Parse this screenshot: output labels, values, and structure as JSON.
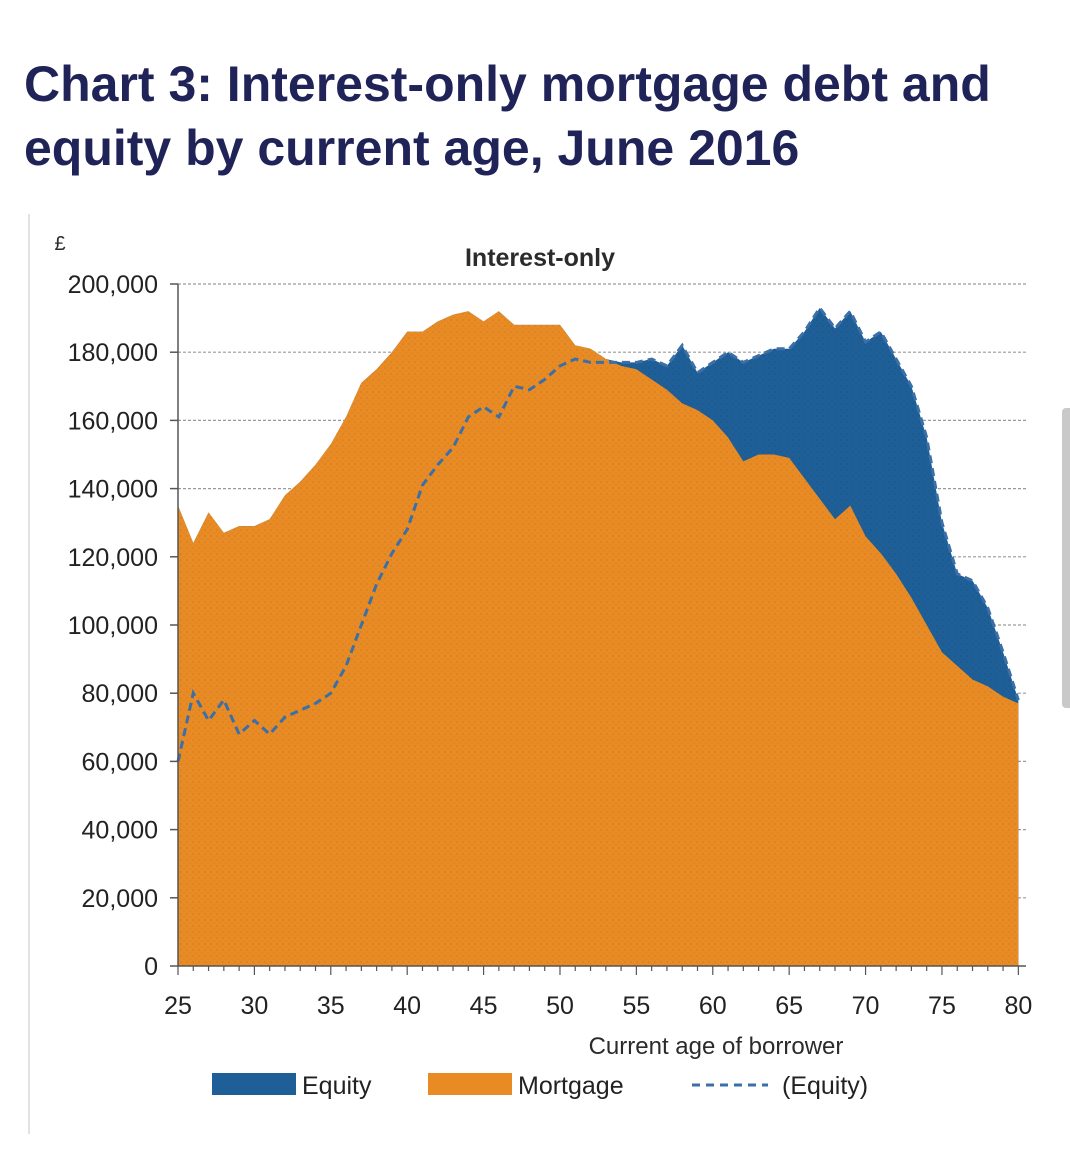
{
  "headline": "Chart 3: Interest-only mortgage debt and equity by current age, June 2016",
  "chart_data": {
    "type": "area",
    "title": "Interest-only",
    "unit_label": "£",
    "xlabel": "Current age of borrower",
    "ylabel": "",
    "xlim": [
      25,
      80.5
    ],
    "ylim": [
      0,
      200000
    ],
    "x_ticks": [
      25,
      30,
      35,
      40,
      45,
      50,
      55,
      60,
      65,
      70,
      75,
      80
    ],
    "y_ticks": [
      0,
      20000,
      40000,
      60000,
      80000,
      100000,
      120000,
      140000,
      160000,
      180000,
      200000
    ],
    "y_tick_labels": [
      "0",
      "20,000",
      "40,000",
      "60,000",
      "80,000",
      "100,000",
      "120,000",
      "140,000",
      "160,000",
      "180,000",
      "200,000"
    ],
    "grid": true,
    "legend_position": "bottom",
    "x": [
      25,
      26,
      27,
      28,
      29,
      30,
      31,
      32,
      33,
      34,
      35,
      36,
      37,
      38,
      39,
      40,
      41,
      42,
      43,
      44,
      45,
      46,
      47,
      48,
      49,
      50,
      51,
      52,
      53,
      54,
      55,
      56,
      57,
      58,
      59,
      60,
      61,
      62,
      63,
      64,
      65,
      66,
      67,
      68,
      69,
      70,
      71,
      72,
      73,
      74,
      75,
      76,
      77,
      78,
      79,
      80
    ],
    "series": [
      {
        "name": "Equity",
        "color": "#1f5f98",
        "style": "stacked-area",
        "values": [
          60000,
          80000,
          72000,
          78000,
          68000,
          72000,
          68000,
          73000,
          75000,
          77000,
          80000,
          88000,
          100000,
          112000,
          121000,
          128000,
          141000,
          147000,
          152000,
          161000,
          164000,
          161000,
          170000,
          169000,
          172000,
          176000,
          178000,
          177000,
          177000,
          177000,
          177000,
          178000,
          176000,
          182000,
          174000,
          177000,
          180000,
          177000,
          179000,
          181000,
          181000,
          186000,
          193000,
          187000,
          192000,
          183000,
          186000,
          178000,
          170000,
          155000,
          130000,
          115000,
          113000,
          105000,
          92000,
          78000
        ]
      },
      {
        "name": "Mortgage",
        "color": "#e98b24",
        "style": "area",
        "values": [
          135000,
          124000,
          133000,
          127000,
          129000,
          129000,
          131000,
          138000,
          142000,
          147000,
          153000,
          161000,
          171000,
          175000,
          180000,
          186000,
          186000,
          189000,
          191000,
          192000,
          189000,
          192000,
          188000,
          188000,
          188000,
          188000,
          182000,
          181000,
          178000,
          176000,
          175000,
          172000,
          169000,
          165000,
          163000,
          160000,
          155000,
          148000,
          150000,
          150000,
          149000,
          143000,
          137000,
          131000,
          135000,
          126000,
          121000,
          115000,
          108000,
          100000,
          92000,
          88000,
          84000,
          82000,
          79000,
          77000
        ]
      },
      {
        "name": "(Equity)",
        "color": "#3a6fa8",
        "style": "dashed-line",
        "values": [
          60000,
          80000,
          72000,
          78000,
          68000,
          72000,
          68000,
          73000,
          75000,
          77000,
          80000,
          88000,
          100000,
          112000,
          121000,
          128000,
          141000,
          147000,
          152000,
          161000,
          164000,
          161000,
          170000,
          169000,
          172000,
          176000,
          178000,
          177000,
          177000,
          177000,
          177000,
          178000,
          176000,
          182000,
          174000,
          177000,
          180000,
          177000,
          179000,
          181000,
          181000,
          186000,
          193000,
          187000,
          192000,
          183000,
          186000,
          178000,
          170000,
          155000,
          130000,
          115000,
          113000,
          105000,
          92000,
          78000
        ]
      }
    ]
  }
}
